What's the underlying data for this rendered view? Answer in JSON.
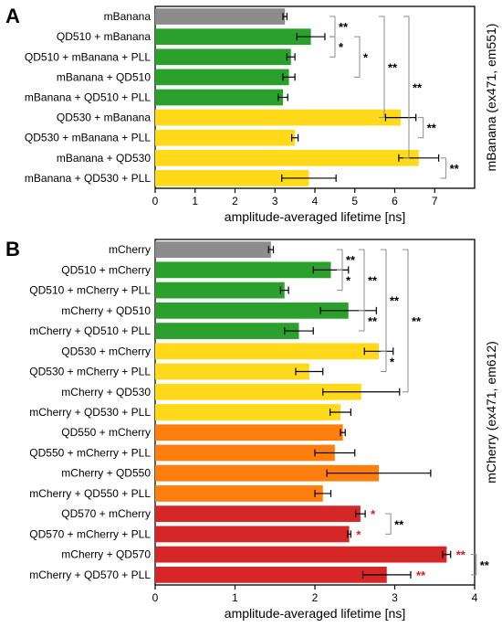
{
  "chart_data": [
    {
      "type": "bar",
      "orientation": "horizontal",
      "panel_label": "A",
      "categories": [
        "mBanana",
        "QD510 + mBanana",
        "QD510 + mBanana + PLL",
        "mBanana + QD510",
        "mBanana + QD510 + PLL",
        "QD530 + mBanana",
        "QD530 + mBanana + PLL",
        "mBanana + QD530",
        "mBanana + QD530 + PLL"
      ],
      "values": [
        3.25,
        3.9,
        3.4,
        3.35,
        3.2,
        6.15,
        3.5,
        6.6,
        3.85
      ],
      "errors": [
        0.05,
        0.35,
        0.1,
        0.15,
        0.12,
        0.38,
        0.08,
        0.5,
        0.68
      ],
      "colors": [
        "#8c8c8c",
        "#2ca02c",
        "#2ca02c",
        "#2ca02c",
        "#2ca02c",
        "#ffd91a",
        "#ffd91a",
        "#ffd91a",
        "#ffd91a"
      ],
      "xlabel": "amplitude-averaged lifetime [ns]",
      "ylabel": "mBanana (ex471, em551)",
      "xlim": [
        0,
        8
      ],
      "xticks": [
        "0",
        "1",
        "2",
        "3",
        "4",
        "5",
        "6",
        "7"
      ],
      "significance": [
        {
          "a": 0,
          "b": 1,
          "label": "**",
          "color": "#000000"
        },
        {
          "a": 1,
          "b": 2,
          "label": "*",
          "color": "#000000"
        },
        {
          "a": 1,
          "b": 3,
          "label": "*",
          "color": "#000000"
        },
        {
          "a": 0,
          "b": 5,
          "label": "**",
          "color": "#000000"
        },
        {
          "a": 0,
          "b": 7,
          "label": "**",
          "color": "#000000"
        },
        {
          "a": 5,
          "b": 6,
          "label": "**",
          "color": "#000000"
        },
        {
          "a": 7,
          "b": 8,
          "label": "**",
          "color": "#000000"
        }
      ]
    },
    {
      "type": "bar",
      "orientation": "horizontal",
      "panel_label": "B",
      "categories": [
        "mCherry",
        "QD510 + mCherry",
        "QD510 + mCherry + PLL",
        "mCherry + QD510",
        "mCherry + QD510 + PLL",
        "QD530 + mCherry",
        "QD530 + mCherry + PLL",
        "mCherry + QD530",
        "mCherry + QD530 + PLL",
        "QD550 + mCherry",
        "QD550 + mCherry + PLL",
        "mCherry + QD550",
        "mCherry + QD550 + PLL",
        "QD570 + mCherry",
        "QD570 + mCherry + PLL",
        "mCherry + QD570",
        "mCherry + QD570 + PLL"
      ],
      "values": [
        1.45,
        2.2,
        1.62,
        2.42,
        1.8,
        2.8,
        1.93,
        2.58,
        2.32,
        2.35,
        2.25,
        2.8,
        2.1,
        2.57,
        2.43,
        3.65,
        2.9
      ],
      "errors": [
        0.03,
        0.22,
        0.05,
        0.35,
        0.18,
        0.18,
        0.17,
        0.48,
        0.13,
        0.03,
        0.25,
        0.65,
        0.1,
        0.06,
        0.02,
        0.05,
        0.3
      ],
      "colors": [
        "#8c8c8c",
        "#2ca02c",
        "#2ca02c",
        "#2ca02c",
        "#2ca02c",
        "#ffd91a",
        "#ffd91a",
        "#ffd91a",
        "#ffd91a",
        "#ff7f0e",
        "#ff7f0e",
        "#ff7f0e",
        "#ff7f0e",
        "#d62728",
        "#d62728",
        "#d62728",
        "#d62728"
      ],
      "xlabel": "amplitude-averaged lifetime [ns]",
      "ylabel": "mCherry (ex471, em612)",
      "xlim": [
        0,
        4
      ],
      "xticks": [
        "0",
        "1",
        "2",
        "3",
        "4"
      ],
      "significance": [
        {
          "a": 0,
          "b": 1,
          "label": "**",
          "color": "#000000"
        },
        {
          "a": 1,
          "b": 2,
          "label": "*",
          "color": "#000000"
        },
        {
          "a": 0,
          "b": 3,
          "label": "**",
          "color": "#000000"
        },
        {
          "a": 3,
          "b": 4,
          "label": "**",
          "color": "#000000"
        },
        {
          "a": 0,
          "b": 5,
          "label": "**",
          "color": "#000000"
        },
        {
          "a": 5,
          "b": 6,
          "label": "*",
          "color": "#000000"
        },
        {
          "a": 0,
          "b": 7,
          "label": "**",
          "color": "#000000"
        },
        {
          "a": 13,
          "b": 14,
          "label": "**",
          "color": "#000000"
        },
        {
          "a": 15,
          "b": 16,
          "label": "**",
          "color": "#000000"
        }
      ],
      "markers": [
        {
          "index": 13,
          "label": "*",
          "color": "#e31a1c"
        },
        {
          "index": 14,
          "label": "*",
          "color": "#e31a1c"
        },
        {
          "index": 15,
          "label": "**",
          "color": "#e31a1c"
        },
        {
          "index": 16,
          "label": "**",
          "color": "#e31a1c"
        }
      ]
    }
  ]
}
